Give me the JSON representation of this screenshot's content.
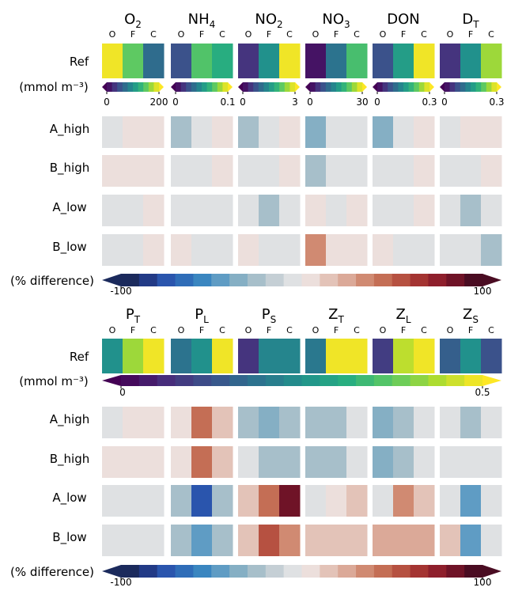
{
  "chart_data": {
    "type": "heatmap",
    "sub_labels": [
      "O",
      "F",
      "C"
    ],
    "row_labels": [
      "Ref",
      "A_high",
      "B_high",
      "A_low",
      "B_low"
    ],
    "unit_label": "(mmol m⁻³)",
    "diff_label": "(% difference)",
    "viridis": [
      "#440154",
      "#472d7b",
      "#3b528b",
      "#2c728e",
      "#21918c",
      "#28ae80",
      "#5ec962",
      "#addc30",
      "#fde725"
    ],
    "diverging": [
      "#1b2a5c",
      "#223a86",
      "#2a55ad",
      "#2f6db8",
      "#3a86c0",
      "#5f9cc4",
      "#85afc4",
      "#a7bfca",
      "#c5cfd5",
      "#dfe1e3",
      "#ecdfdc",
      "#e3c3b8",
      "#dba998",
      "#d08a72",
      "#c46e55",
      "#b65141",
      "#a43432",
      "#8e1f2c",
      "#6f1327",
      "#4a0c22"
    ],
    "panels": [
      {
        "cb_ticks": [
          "-100",
          "100"
        ],
        "diff_range": [
          -100,
          100
        ],
        "groups": [
          {
            "name": "O",
            "sub": "2",
            "vmax": 200,
            "ticks": [
              "0",
              "200"
            ],
            "ref": [
              0.98,
              0.75,
              0.35
            ],
            "diffs": [
              [
                -3,
                3,
                3
              ],
              [
                3,
                3,
                3
              ],
              [
                -3,
                -3,
                3
              ],
              [
                -3,
                -3,
                3
              ]
            ]
          },
          {
            "name": "NH",
            "sub": "4",
            "vmax": 0.1,
            "ticks": [
              "0",
              "0.1"
            ],
            "ref": [
              0.25,
              0.72,
              0.62
            ],
            "diffs": [
              [
                -22,
                -3,
                3
              ],
              [
                -3,
                -3,
                3
              ],
              [
                -3,
                -3,
                -3
              ],
              [
                3,
                -3,
                -3
              ]
            ]
          },
          {
            "name": "NO",
            "sub": "2",
            "vmax": 3,
            "ticks": [
              "0",
              "3"
            ],
            "ref": [
              0.15,
              0.5,
              0.98
            ],
            "diffs": [
              [
                -22,
                -3,
                3
              ],
              [
                -3,
                -3,
                3
              ],
              [
                -3,
                -22,
                -3
              ],
              [
                3,
                -3,
                -3
              ]
            ]
          },
          {
            "name": "NO",
            "sub": "3",
            "vmax": 30,
            "ticks": [
              "0",
              "30"
            ],
            "ref": [
              0.05,
              0.38,
              0.7
            ],
            "diffs": [
              [
                -35,
                -3,
                -3
              ],
              [
                -22,
                -3,
                -3
              ],
              [
                3,
                -3,
                3
              ],
              [
                30,
                3,
                3
              ]
            ]
          },
          {
            "name": "DON",
            "sub": "",
            "vmax": 0.3,
            "ticks": [
              "0",
              "0.3"
            ],
            "ref": [
              0.25,
              0.55,
              0.98
            ],
            "diffs": [
              [
                -35,
                -3,
                3
              ],
              [
                -3,
                -3,
                3
              ],
              [
                -3,
                -3,
                3
              ],
              [
                3,
                -3,
                -3
              ]
            ]
          },
          {
            "name": "D",
            "sub": "T",
            "vmax": 0.3,
            "ticks": [
              "0",
              "0.3"
            ],
            "ref": [
              0.15,
              0.5,
              0.85
            ],
            "diffs": [
              [
                -3,
                3,
                3
              ],
              [
                -3,
                -3,
                3
              ],
              [
                -3,
                -22,
                -3
              ],
              [
                -3,
                -3,
                -22
              ]
            ]
          }
        ]
      },
      {
        "cb_ticks": [
          "-100",
          "100"
        ],
        "diff_range": [
          -100,
          100
        ],
        "groups": [
          {
            "name": "P",
            "sub": "T",
            "vmax": 0.5,
            "ticks": [],
            "ref": [
              0.5,
              0.85,
              0.98
            ],
            "diffs": [
              [
                -3,
                3,
                3
              ],
              [
                3,
                3,
                3
              ],
              [
                -3,
                -3,
                -3
              ],
              [
                -3,
                -3,
                -3
              ]
            ]
          },
          {
            "name": "P",
            "sub": "L",
            "vmax": 0.5,
            "ticks": [],
            "ref": [
              0.38,
              0.5,
              0.98
            ],
            "diffs": [
              [
                3,
                40,
                15
              ],
              [
                3,
                40,
                15
              ],
              [
                -25,
                -75,
                -25
              ],
              [
                -25,
                -50,
                -25
              ]
            ]
          },
          {
            "name": "P",
            "sub": "S",
            "vmax": 0.5,
            "ticks": [],
            "ref": [
              0.15,
              0.45,
              0.45
            ],
            "diffs": [
              [
                -22,
                -40,
                -22
              ],
              [
                -3,
                -22,
                -22
              ],
              [
                15,
                45,
                80
              ],
              [
                15,
                55,
                30
              ]
            ]
          },
          {
            "name": "Z",
            "sub": "T",
            "vmax": 0.5,
            "ticks": [],
            "ref": [
              0.4,
              0.98,
              0.98
            ],
            "diffs": [
              [
                -25,
                -22,
                -3
              ],
              [
                -22,
                -22,
                -3
              ],
              [
                -3,
                3,
                15
              ],
              [
                15,
                15,
                15
              ]
            ]
          },
          {
            "name": "Z",
            "sub": "L",
            "vmax": 0.5,
            "ticks": [],
            "ref": [
              0.18,
              0.9,
              0.98
            ],
            "diffs": [
              [
                -40,
                -22,
                -3
              ],
              [
                -40,
                -22,
                -3
              ],
              [
                -3,
                30,
                15
              ],
              [
                25,
                25,
                25
              ]
            ]
          },
          {
            "name": "Z",
            "sub": "S",
            "vmax": 0.5,
            "ticks": [],
            "ref": [
              0.3,
              0.5,
              0.25
            ],
            "diffs": [
              [
                -3,
                -22,
                -3
              ],
              [
                -3,
                -3,
                -3
              ],
              [
                -3,
                -45,
                -3
              ],
              [
                15,
                -45,
                -3
              ]
            ]
          }
        ]
      }
    ],
    "shared_scale": {
      "ticks": [
        "0",
        "0.5"
      ],
      "vmax": 0.5
    }
  }
}
